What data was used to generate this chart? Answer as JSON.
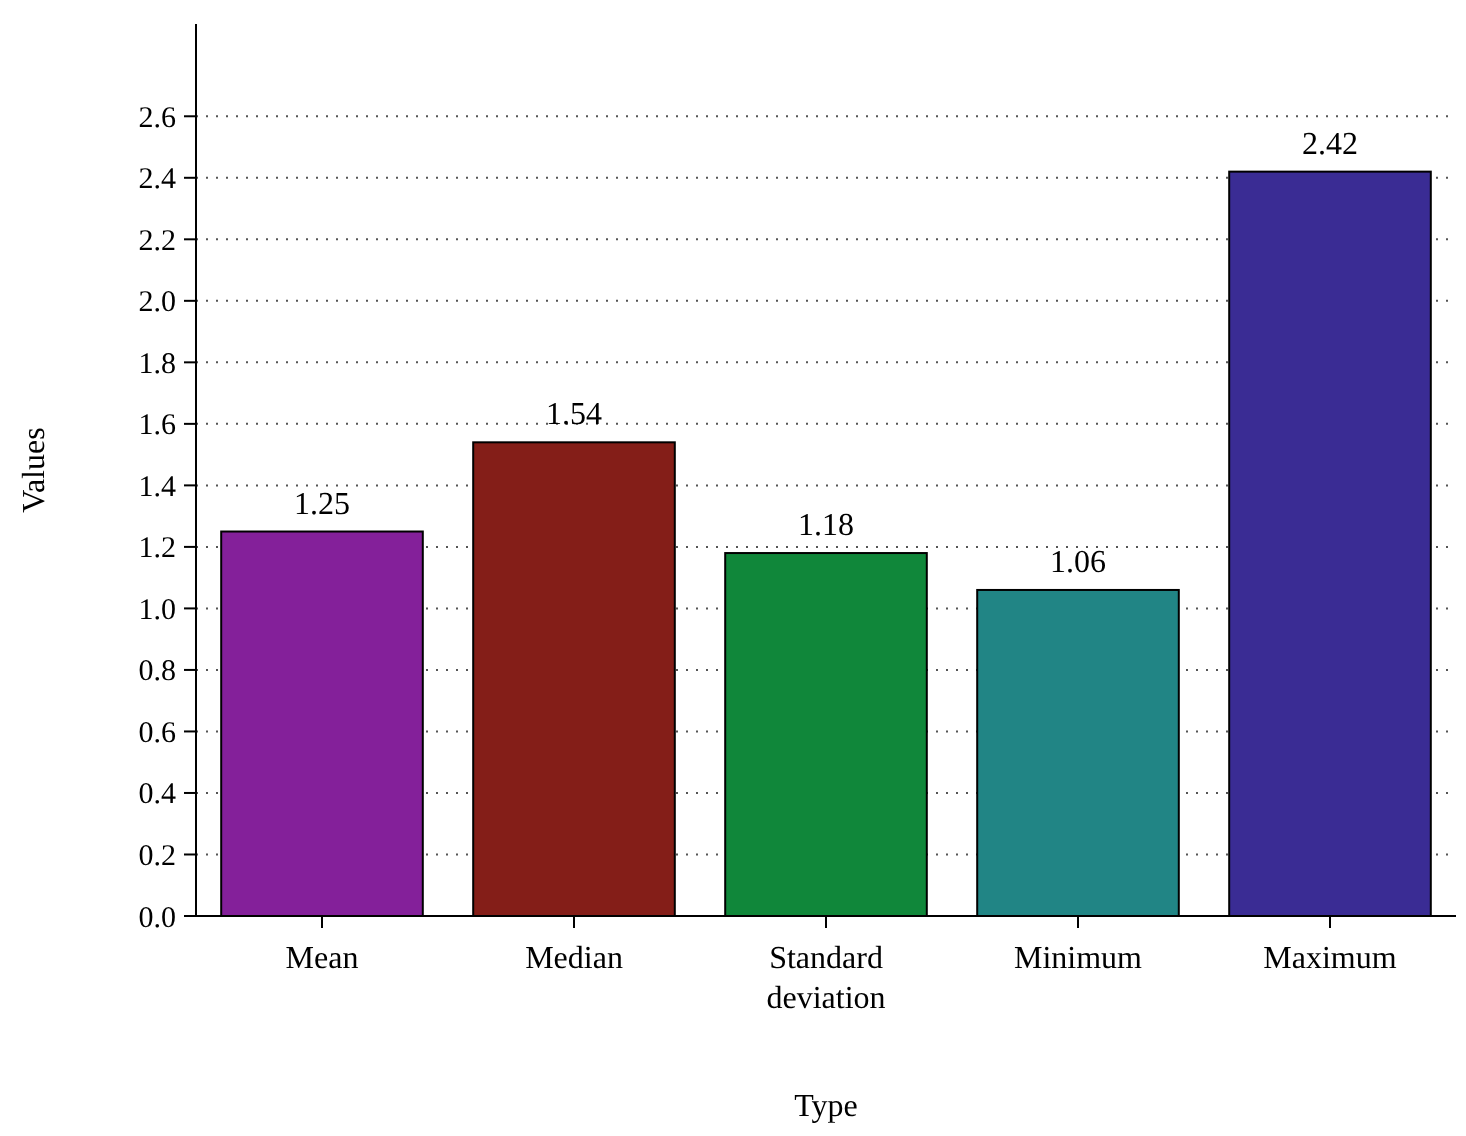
{
  "chart_data": {
    "type": "bar",
    "xlabel": "Type",
    "ylabel": "Values",
    "categories": [
      "Mean",
      "Median",
      "Standard deviation",
      "Minimum",
      "Maximum"
    ],
    "values": [
      1.25,
      1.54,
      1.18,
      1.06,
      2.42
    ],
    "colors": [
      "#84209a",
      "#841e18",
      "#10873a",
      "#218585",
      "#3a2c94"
    ],
    "ylim": [
      0,
      2.9
    ],
    "yticks": [
      {
        "value": 0,
        "label": "0.0"
      },
      {
        "value": 0.2,
        "label": "0.2"
      },
      {
        "value": 0.4,
        "label": "0.4"
      },
      {
        "value": 0.6,
        "label": "0.6"
      },
      {
        "value": 0.8,
        "label": "0.8"
      },
      {
        "value": 1,
        "label": "1.0"
      },
      {
        "value": 1.2,
        "label": "1.2"
      },
      {
        "value": 1.4,
        "label": "1.4"
      },
      {
        "value": 1.6,
        "label": "1.6"
      },
      {
        "value": 1.8,
        "label": "1.8"
      },
      {
        "value": 2,
        "label": "2.0"
      },
      {
        "value": 2.2,
        "label": "2.2"
      },
      {
        "value": 2.4,
        "label": "2.4"
      },
      {
        "value": 2.6,
        "label": "2.6"
      }
    ],
    "grid": true,
    "line_style": "dotted",
    "data_labels": true
  }
}
